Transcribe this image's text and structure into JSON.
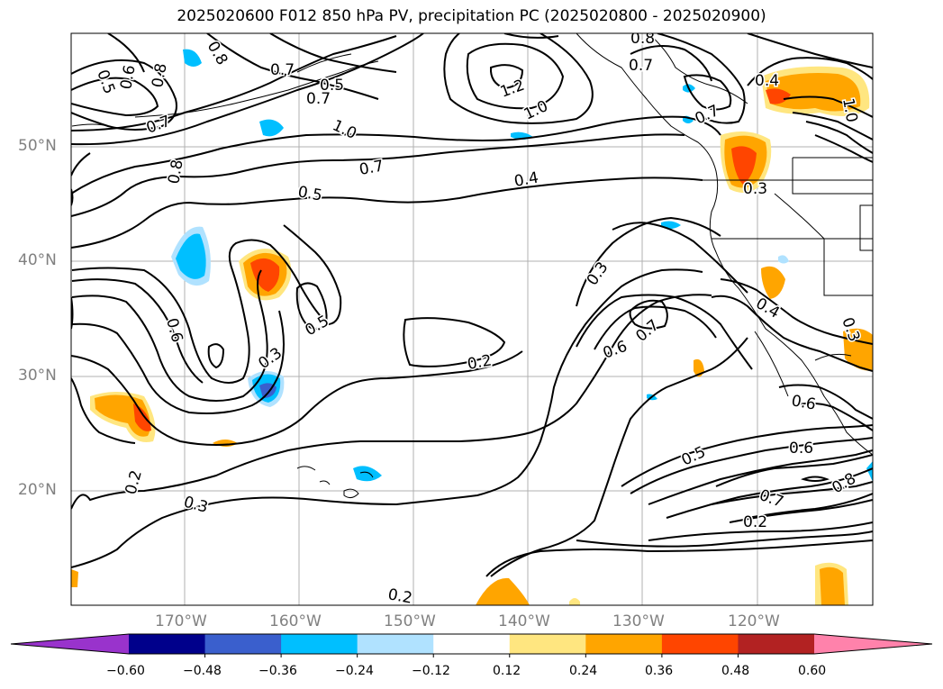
{
  "title": "2025020600 F012 850 hPa PV, precipitation PC (2025020800 - 2025020900)",
  "lat_labels": [
    "50°N",
    "40°N",
    "30°N",
    "20°N"
  ],
  "lon_labels": [
    "170°W",
    "160°W",
    "150°W",
    "140°W",
    "130°W",
    "120°W"
  ],
  "contour_labels": [
    "0.5",
    "0.6",
    "0.8",
    "0.7",
    "0.8",
    "0.5",
    "0.7",
    "1.2",
    "1.0",
    "0.8",
    "0.7",
    "0.4",
    "0.7",
    "1.0",
    "0.7",
    "0.8",
    "0.7",
    "0.5",
    "0.4",
    "0.3",
    "0.3",
    "0.6",
    "0.7",
    "0.4",
    "0.3",
    "0.5",
    "0.3",
    "0.2",
    "0.6",
    "0.6",
    "0.6",
    "0.5",
    "0.7",
    "0.8",
    "0.2",
    "0.2",
    "0.3",
    "0.2",
    "1.0"
  ],
  "colorbar": {
    "ticks": [
      "−0.60",
      "−0.48",
      "−0.36",
      "−0.24",
      "−0.12",
      "0.12",
      "0.24",
      "0.36",
      "0.48",
      "0.60"
    ],
    "colors": [
      "#9933cc",
      "#00008b",
      "#3a5fcd",
      "#00bfff",
      "#b0e2ff",
      "#ffffff",
      "#ffe680",
      "#ffa500",
      "#ff4500",
      "#b22222",
      "#ff82ab"
    ]
  }
}
